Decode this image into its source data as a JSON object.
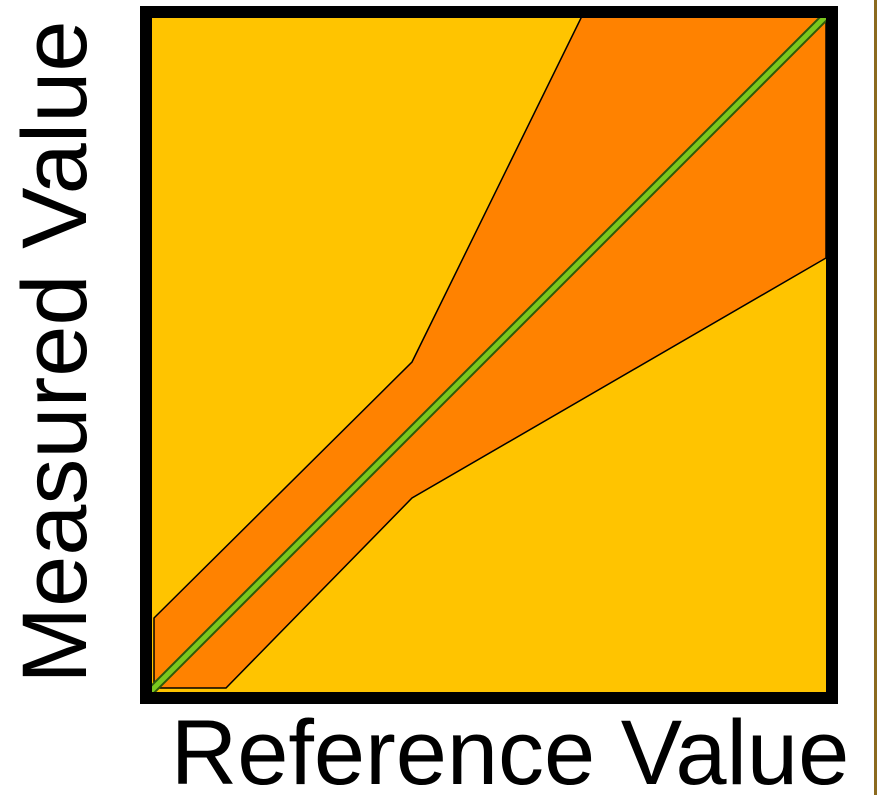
{
  "diagram": {
    "x_axis_label": "Reference Value",
    "y_axis_label": "Measured Value",
    "colors": {
      "background_zone": "#FFC400",
      "tolerance_band": "#FF8200",
      "identity_line": "#7CC81E",
      "frame": "#000000",
      "right_edge": "#8B6A1F"
    }
  }
}
